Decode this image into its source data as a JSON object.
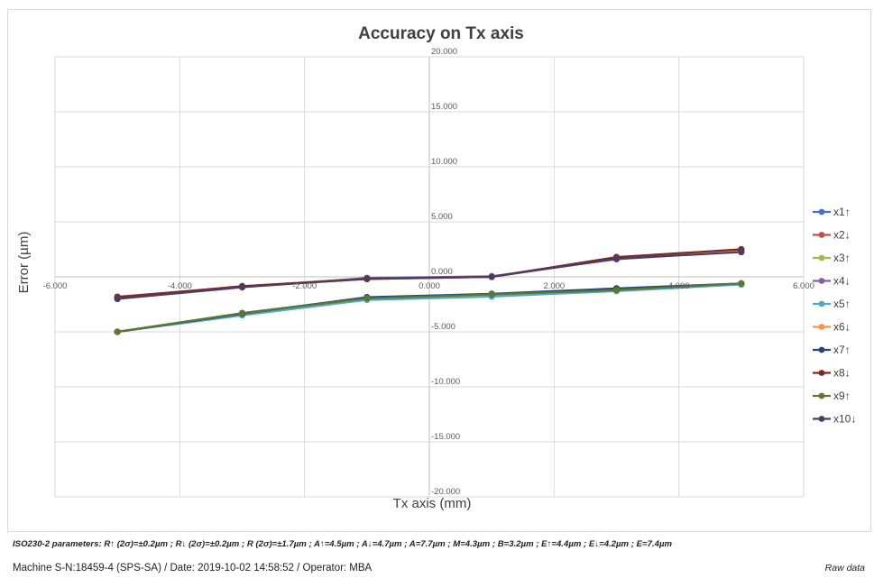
{
  "chart_data": {
    "type": "line",
    "title": "Accuracy on Tx axis",
    "xlabel": "Tx axis (mm)",
    "ylabel": "Error (µm)",
    "xlim": [
      -6,
      6
    ],
    "ylim": [
      -20,
      20
    ],
    "xticks": [
      "-6.000",
      "-4.000",
      "-2.000",
      "0.000",
      "2.000",
      "4.000",
      "6.000"
    ],
    "yticks": [
      "20.000",
      "15.000",
      "10.000",
      "5.000",
      "0.000",
      "-5.000",
      "-10.000",
      "-15.000",
      "-20.000"
    ],
    "grid": true,
    "legend_position": "right",
    "x": [
      -5,
      -3,
      -1,
      1,
      3,
      5
    ],
    "series": [
      {
        "name": "x1↑",
        "color": "#4472C4",
        "values": [
          -5.0,
          -3.3,
          -1.9,
          -1.6,
          -1.1,
          -0.65
        ]
      },
      {
        "name": "x2↓",
        "color": "#C0504D",
        "values": [
          -1.8,
          -0.9,
          -0.2,
          0.0,
          1.75,
          2.5
        ]
      },
      {
        "name": "x3↑",
        "color": "#9BBB59",
        "values": [
          -5.0,
          -3.4,
          -2.0,
          -1.75,
          -1.25,
          -0.65
        ]
      },
      {
        "name": "x4↓",
        "color": "#8064A2",
        "values": [
          -2.0,
          -0.9,
          -0.1,
          0.05,
          1.6,
          2.3
        ]
      },
      {
        "name": "x5↑",
        "color": "#4BACC6",
        "values": [
          -5.0,
          -3.5,
          -2.1,
          -1.8,
          -1.3,
          -0.7
        ]
      },
      {
        "name": "x6↓",
        "color": "#F79646",
        "values": [
          -1.9,
          -0.85,
          -0.15,
          0.0,
          1.7,
          2.45
        ]
      },
      {
        "name": "x7↑",
        "color": "#264478",
        "values": [
          -5.0,
          -3.35,
          -1.85,
          -1.55,
          -1.05,
          -0.6
        ]
      },
      {
        "name": "x8↓",
        "color": "#772C2A",
        "values": [
          -1.85,
          -0.85,
          -0.2,
          0.0,
          1.8,
          2.5
        ]
      },
      {
        "name": "x9↑",
        "color": "#5F7530",
        "values": [
          -5.0,
          -3.3,
          -1.95,
          -1.6,
          -1.2,
          -0.6
        ]
      },
      {
        "name": "x10↓",
        "color": "#4D3B62",
        "values": [
          -2.0,
          -0.95,
          -0.15,
          0.0,
          1.65,
          2.25
        ]
      }
    ]
  },
  "parameters_text": "ISO230-2 parameters: R↑ (2σ)=±0.2µm ; R↓ (2σ)=±0.2µm ; R (2σ)=±1.7µm ; A↑=4.5µm ; A↓=4.7µm ; A=7.7µm ; M=4.3µm ; B=3.2µm ; E↑=4.4µm ; E↓=4.2µm ; E=7.4µm",
  "footer_text": "Machine S-N:18459-4 (SPS-SA) / Date: 2019-10-02 14:58:52 / Operator: MBA",
  "raw_label": "Raw data"
}
